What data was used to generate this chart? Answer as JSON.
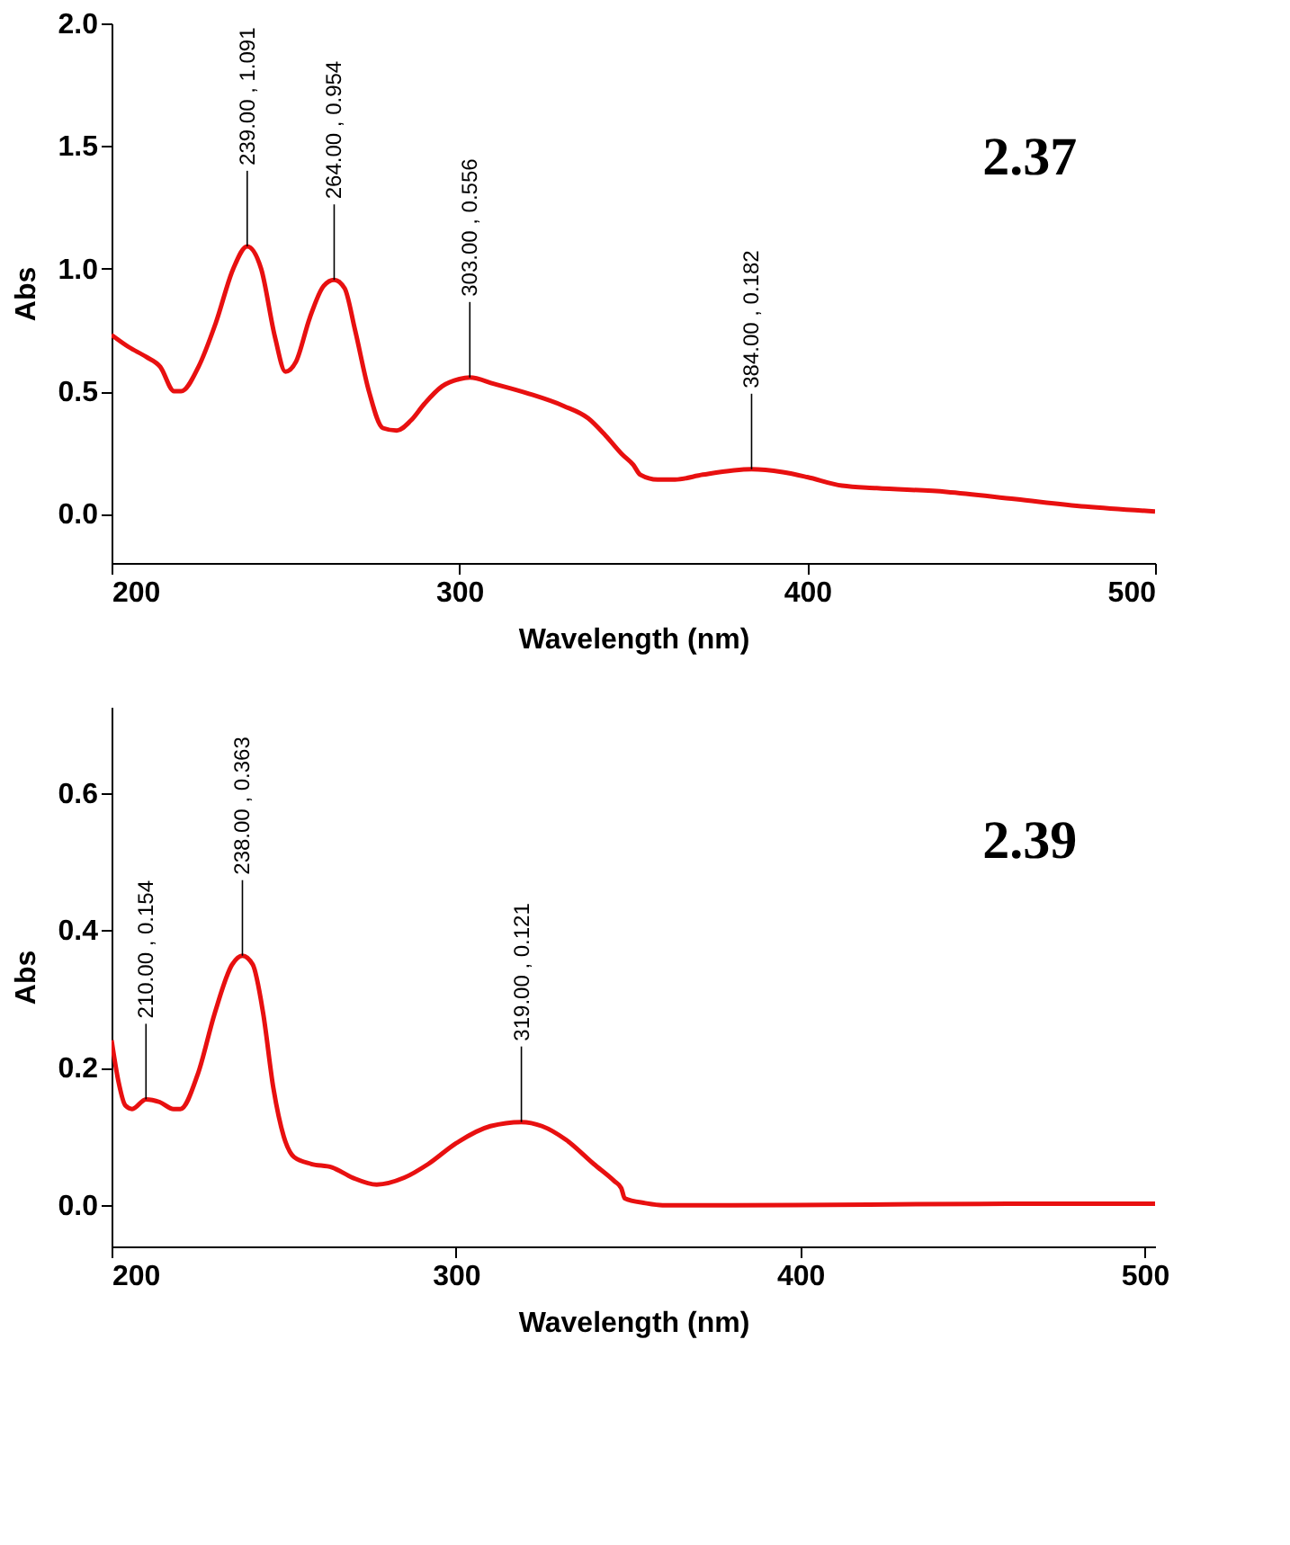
{
  "chart_data": [
    {
      "type": "line",
      "xlabel": "Wavelength (nm)",
      "ylabel": "Abs",
      "xlim": [
        200,
        500
      ],
      "ylim": [
        -0.2,
        2.0
      ],
      "xticks": [
        200,
        300,
        400,
        500
      ],
      "yticks": [
        {
          "value": 0,
          "label": "0.0"
        },
        {
          "value": 0.5,
          "label": "0.5"
        },
        {
          "value": 1,
          "label": "1.0"
        },
        {
          "value": 1.5,
          "label": "1.5"
        },
        {
          "value": 2,
          "label": "2.0"
        }
      ],
      "grid": false,
      "x": [
        200,
        205,
        210,
        214,
        218,
        220,
        225,
        230,
        235,
        239,
        243,
        247,
        250,
        253,
        257,
        261,
        264,
        267,
        270,
        274,
        278,
        282,
        286,
        290,
        295,
        300,
        303,
        310,
        320,
        330,
        337,
        342,
        347,
        350,
        352,
        357,
        362,
        370,
        384,
        393,
        400,
        410,
        420,
        440,
        460,
        480,
        500
      ],
      "series": [
        {
          "color": "#e81010",
          "values": [
            0.73,
            0.68,
            0.64,
            0.6,
            0.5,
            0.5,
            0.6,
            0.78,
            1.0,
            1.091,
            1.0,
            0.72,
            0.58,
            0.62,
            0.8,
            0.93,
            0.954,
            0.92,
            0.75,
            0.5,
            0.35,
            0.34,
            0.38,
            0.45,
            0.52,
            0.55,
            0.556,
            0.53,
            0.49,
            0.44,
            0.39,
            0.32,
            0.24,
            0.2,
            0.16,
            0.14,
            0.14,
            0.16,
            0.182,
            0.17,
            0.15,
            0.115,
            0.105,
            0.09,
            0.06,
            0.03,
            0.01
          ]
        }
      ],
      "annotations": [
        "2.37",
        {
          "text": "239.00 , 1.091",
          "x": 239,
          "y": 1.091
        },
        {
          "text": "264.00 , 0.954",
          "x": 264,
          "y": 0.954
        },
        {
          "text": "303.00 , 0.556",
          "x": 303,
          "y": 0.556
        },
        {
          "text": "384.00 , 0.182",
          "x": 384,
          "y": 0.182
        }
      ]
    },
    {
      "type": "line",
      "xlabel": "Wavelength (nm)",
      "ylabel": "Abs",
      "xlim": [
        200,
        503
      ],
      "ylim": [
        -0.06,
        0.725
      ],
      "xticks": [
        200,
        300,
        400,
        500
      ],
      "yticks": [
        {
          "value": 0,
          "label": "0.0"
        },
        {
          "value": 0.2,
          "label": "0.2"
        },
        {
          "value": 0.4,
          "label": "0.4"
        },
        {
          "value": 0.6,
          "label": "0.6"
        }
      ],
      "grid": false,
      "x": [
        200,
        202,
        204,
        206,
        210,
        214,
        218,
        220,
        225,
        230,
        235,
        238,
        241,
        244,
        247,
        250,
        253,
        258,
        264,
        270,
        277,
        285,
        292,
        300,
        310,
        319,
        325,
        332,
        340,
        346,
        348,
        349,
        355,
        360,
        380,
        420,
        460,
        503
      ],
      "series": [
        {
          "color": "#e81010",
          "values": [
            0.24,
            0.18,
            0.145,
            0.14,
            0.154,
            0.15,
            0.14,
            0.14,
            0.19,
            0.28,
            0.35,
            0.363,
            0.35,
            0.28,
            0.17,
            0.1,
            0.07,
            0.06,
            0.055,
            0.04,
            0.03,
            0.04,
            0.06,
            0.09,
            0.115,
            0.121,
            0.115,
            0.095,
            0.06,
            0.035,
            0.025,
            0.01,
            0.003,
            0.0,
            0.0,
            0.001,
            0.002,
            0.002
          ]
        }
      ],
      "annotations": [
        "2.39",
        {
          "text": "210.00 , 0.154",
          "x": 210,
          "y": 0.154
        },
        {
          "text": "238.00 , 0.363",
          "x": 238,
          "y": 0.363
        },
        {
          "text": "319.00 , 0.121",
          "x": 319,
          "y": 0.121
        }
      ]
    }
  ]
}
